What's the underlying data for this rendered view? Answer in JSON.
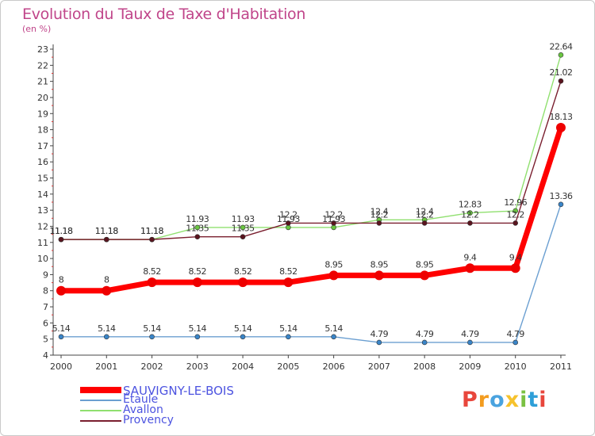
{
  "title": "Evolution du Taux de Taxe d'Habitation",
  "subtitle": "(en %)",
  "logo_text": "Proxiti",
  "logo_colors": [
    "#e8463c",
    "#f39c1f",
    "#4aa3df",
    "#f6c22c",
    "#7ac143",
    "#2e9fd8",
    "#e8463c"
  ],
  "chart_data": {
    "type": "line",
    "x": [
      "2000",
      "2001",
      "2002",
      "2003",
      "2004",
      "2005",
      "2006",
      "2007",
      "2008",
      "2009",
      "2010",
      "2011"
    ],
    "ylim": [
      4,
      23
    ],
    "yticks": [
      4,
      5,
      6,
      7,
      8,
      9,
      10,
      11,
      12,
      13,
      14,
      15,
      16,
      17,
      18,
      19,
      20,
      21,
      22,
      23
    ],
    "grid": false,
    "legend_position": "bottom-left",
    "series": [
      {
        "name": "Avallon",
        "color": "#90e06f",
        "dot": "#6ac641",
        "values": [
          11.18,
          11.18,
          11.18,
          11.93,
          11.93,
          11.93,
          11.93,
          12.4,
          12.4,
          12.83,
          12.96,
          22.64
        ],
        "labels": [
          "11.18",
          "11.18",
          "11.18",
          "11.93",
          "11.93",
          "11.93",
          "11.93",
          "12.4",
          "12.4",
          "12.83",
          "12.96",
          "22.64"
        ]
      },
      {
        "name": "Provency",
        "color": "#7a1f2f",
        "dot": "#5a141e",
        "values": [
          11.18,
          11.18,
          11.18,
          11.35,
          11.35,
          12.2,
          12.2,
          12.2,
          12.2,
          12.2,
          12.2,
          21.02
        ],
        "labels": [
          "11.18",
          "11.18",
          "11.18",
          "11.35",
          "11.35",
          "12.2",
          "12.2",
          "12.2",
          "12.2",
          "12.2",
          "12.2",
          "21.02"
        ]
      },
      {
        "name": "Étaule",
        "color": "#6b9fd1",
        "dot": "#3a85c8",
        "values": [
          5.14,
          5.14,
          5.14,
          5.14,
          5.14,
          5.14,
          5.14,
          4.79,
          4.79,
          4.79,
          4.79,
          13.36
        ],
        "labels": [
          "5.14",
          "5.14",
          "5.14",
          "5.14",
          "5.14",
          "5.14",
          "5.14",
          "4.79",
          "4.79",
          "4.79",
          "4.79",
          "13.36"
        ]
      },
      {
        "name": "SAUVIGNY-LE-BOIS",
        "color": "#ff0000",
        "dot": "#ee0000",
        "values": [
          8,
          8,
          8.52,
          8.52,
          8.52,
          8.52,
          8.95,
          8.95,
          8.95,
          9.4,
          9.4,
          18.13
        ],
        "labels": [
          "8",
          "8",
          "8.52",
          "8.52",
          "8.52",
          "8.52",
          "8.95",
          "8.95",
          "8.95",
          "9.4",
          "9.4",
          "18.13"
        ]
      }
    ],
    "legend": [
      {
        "name": "SAUVIGNY-LE-BOIS",
        "color": "#ff0000",
        "weight": "thick"
      },
      {
        "name": "Étaule",
        "color": "#6b9fd1",
        "weight": "thin"
      },
      {
        "name": "Avallon",
        "color": "#90e06f",
        "weight": "thin"
      },
      {
        "name": "Provency",
        "color": "#7a1f2f",
        "weight": "thin"
      }
    ]
  }
}
